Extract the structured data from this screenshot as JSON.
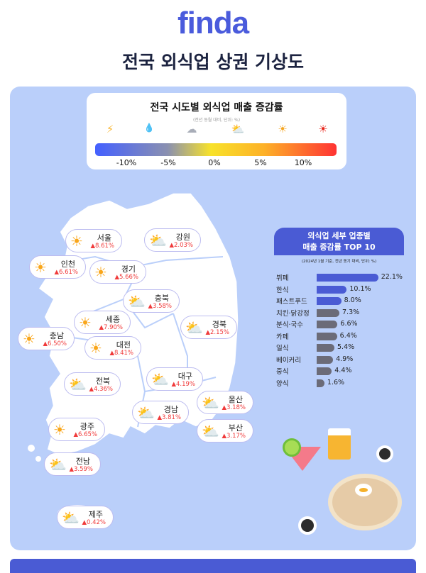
{
  "header": {
    "logo": "finda",
    "title": "전국 외식업 상권 기상도"
  },
  "legend": {
    "title": "전국 시도별 외식업 매출 증감률",
    "subtitle": "(전년 동월 대비, 단위: %)",
    "icons": [
      "lightning-icon",
      "rain-icon",
      "cloud-icon",
      "sun-cloud-icon",
      "sun-icon",
      "hot-sun-icon"
    ],
    "ticks": [
      "-10%",
      "-5%",
      "0%",
      "5%",
      "10%"
    ],
    "colors": [
      "#4460ff",
      "#8a90b0",
      "#f8e22a",
      "#fdb128",
      "#ff3333"
    ]
  },
  "regions": [
    {
      "name": "서울",
      "value": "▲8.61%",
      "icon": "sun-icon"
    },
    {
      "name": "강원",
      "value": "▲2.03%",
      "icon": "sun-cloud-icon"
    },
    {
      "name": "인천",
      "value": "▲6.61%",
      "icon": "sun-icon"
    },
    {
      "name": "경기",
      "value": "▲5.66%",
      "icon": "sun-icon"
    },
    {
      "name": "충북",
      "value": "▲3.58%",
      "icon": "sun-cloud-icon"
    },
    {
      "name": "세종",
      "value": "▲7.90%",
      "icon": "sun-icon"
    },
    {
      "name": "충남",
      "value": "▲6.50%",
      "icon": "sun-icon"
    },
    {
      "name": "대전",
      "value": "▲8.41%",
      "icon": "sun-icon"
    },
    {
      "name": "경북",
      "value": "▲2.15%",
      "icon": "sun-cloud-icon"
    },
    {
      "name": "전북",
      "value": "▲4.36%",
      "icon": "sun-cloud-icon"
    },
    {
      "name": "대구",
      "value": "▲4.19%",
      "icon": "sun-cloud-icon"
    },
    {
      "name": "울산",
      "value": "▲3.18%",
      "icon": "sun-cloud-icon"
    },
    {
      "name": "경남",
      "value": "▲3.81%",
      "icon": "sun-cloud-icon"
    },
    {
      "name": "부산",
      "value": "▲3.17%",
      "icon": "sun-cloud-icon"
    },
    {
      "name": "광주",
      "value": "▲6.65%",
      "icon": "sun-icon"
    },
    {
      "name": "전남",
      "value": "▲3.59%",
      "icon": "sun-cloud-icon"
    },
    {
      "name": "제주",
      "value": "▲0.42%",
      "icon": "sun-cloud-icon"
    }
  ],
  "chart_data": {
    "type": "bar",
    "title": "외식업 세부 업종별 매출 증감률 TOP 10",
    "title_line1": "외식업 세부 업종별",
    "title_line2": "매출 증감률 TOP 10",
    "subtitle": "(2024년 1월 기준, 전년 동기 대비, 단위: %)",
    "orientation": "horizontal",
    "categories": [
      "뷔페",
      "한식",
      "패스트푸드",
      "치킨·닭강정",
      "분식·국수",
      "카페",
      "일식",
      "베이커리",
      "중식",
      "양식"
    ],
    "values": [
      22.1,
      10.1,
      8.0,
      7.3,
      6.6,
      6.4,
      5.4,
      4.9,
      4.4,
      1.6
    ],
    "labels": [
      "22.1%",
      "10.1%",
      "8.0%",
      "7.3%",
      "6.6%",
      "6.4%",
      "5.4%",
      "4.9%",
      "4.4%",
      "1.6%"
    ],
    "colors": {
      "top3": "#4a5bd4",
      "rest": "#6b6b78"
    }
  }
}
